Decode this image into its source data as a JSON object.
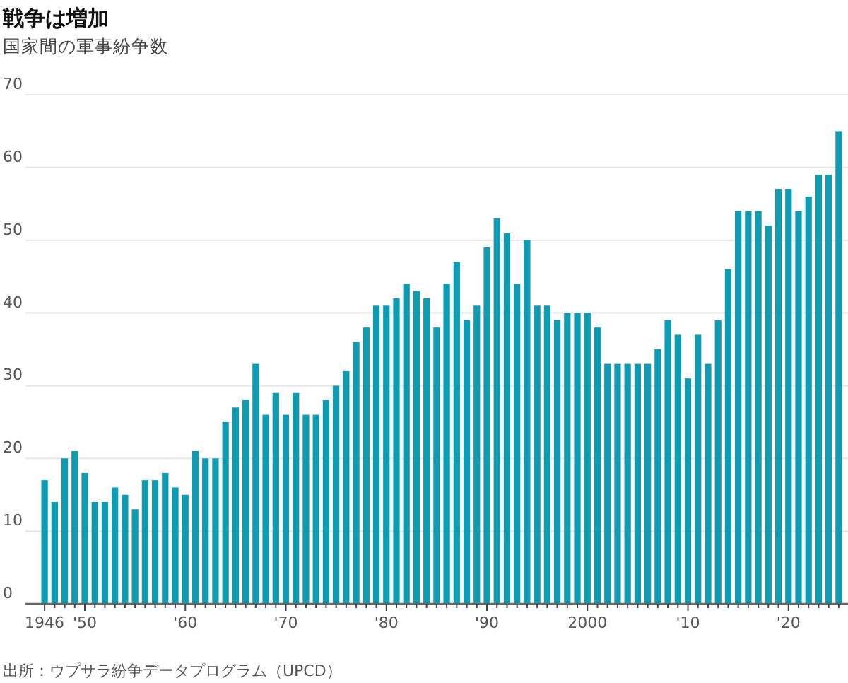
{
  "chart_data": {
    "type": "bar",
    "title": "戦争は増加",
    "subtitle": "国家間の軍事紛争数",
    "annotations": [
      "出所：ウプサラ紛争データプログラム（UPCD）"
    ],
    "categories": [
      "1946",
      null,
      null,
      null,
      "'50",
      null,
      null,
      null,
      null,
      null,
      null,
      null,
      null,
      null,
      "'60",
      null,
      null,
      null,
      null,
      null,
      null,
      null,
      null,
      null,
      "'70",
      null,
      null,
      null,
      null,
      null,
      null,
      null,
      null,
      null,
      "'80",
      null,
      null,
      null,
      null,
      null,
      null,
      null,
      null,
      null,
      "'90",
      null,
      null,
      null,
      null,
      null,
      null,
      null,
      null,
      null,
      "2000",
      null,
      null,
      null,
      null,
      null,
      null,
      null,
      null,
      null,
      "'10",
      null,
      null,
      null,
      null,
      null,
      null,
      null,
      null,
      null,
      "'20",
      null,
      null,
      null,
      null,
      null
    ],
    "values": [
      17,
      14,
      20,
      21,
      18,
      14,
      14,
      16,
      15,
      13,
      17,
      17,
      18,
      16,
      15,
      21,
      20,
      20,
      25,
      27,
      28,
      33,
      26,
      29,
      26,
      29,
      26,
      26,
      28,
      30,
      32,
      36,
      38,
      41,
      41,
      42,
      44,
      43,
      42,
      38,
      44,
      47,
      39,
      41,
      49,
      53,
      51,
      44,
      50,
      41,
      41,
      39,
      40,
      40,
      40,
      38,
      33,
      33,
      33,
      33,
      33,
      35,
      39,
      37,
      31,
      37,
      33,
      39,
      46,
      54,
      54,
      54,
      52,
      57,
      57,
      54,
      56,
      59,
      59,
      65
    ],
    "color": "#0f9bb1",
    "ylim": [
      0,
      70
    ],
    "yticks": [
      0,
      10,
      20,
      30,
      40,
      50,
      60,
      70
    ],
    "grid": "y"
  }
}
